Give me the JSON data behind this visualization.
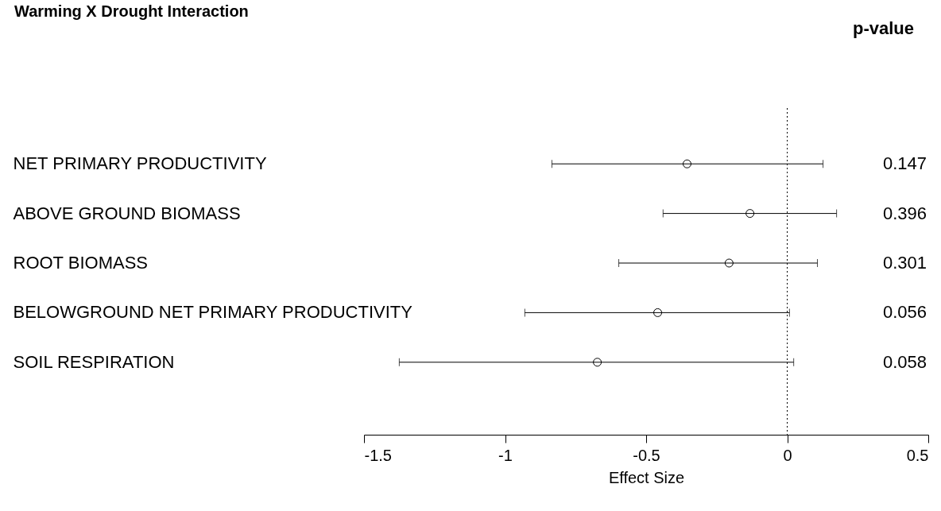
{
  "chart_data": {
    "type": "scatter",
    "title": "Warming X Drought Interaction",
    "xlabel": "Effect Size",
    "orientation": "horizontal",
    "categories": [
      "NET PRIMARY PRODUCTIVITY",
      "ABOVE GROUND BIOMASS",
      "ROOT BIOMASS",
      "BELOWGROUND NET PRIMARY PRODUCTIVITY",
      "SOIL RESPIRATION"
    ],
    "values": [
      -0.355,
      -0.132,
      -0.206,
      -0.459,
      -0.673
    ],
    "errors": [
      [
        -0.834,
        0.127
      ],
      [
        -0.44,
        0.175
      ],
      [
        -0.597,
        0.107
      ],
      [
        -0.93,
        0.008
      ],
      [
        -1.375,
        0.023
      ]
    ],
    "color": "#000000",
    "marker": "circle",
    "xlim": [
      -1.5,
      0.5
    ],
    "xticks": [
      -1.5,
      -1,
      -0.5,
      0,
      0.5
    ],
    "ref_lines": [
      {
        "axis": "x",
        "value": 0,
        "line_style": "dotted"
      }
    ],
    "annotations": [
      "p-value",
      "0.147",
      "0.396",
      "0.301",
      "0.056",
      "0.058"
    ]
  }
}
